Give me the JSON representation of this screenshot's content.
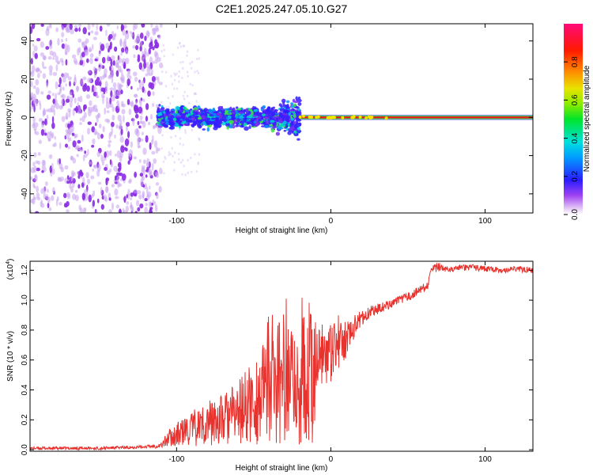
{
  "figure_title": "C2E1.2025.247.05.10.G27",
  "chart_data": [
    {
      "type": "heatmap",
      "title": "C2E1.2025.247.05.10.G27",
      "xlabel": "Height of straight line (km)",
      "ylabel": "Frequency (Hz)",
      "xlim": [
        -195,
        131
      ],
      "ylim": [
        -50,
        49
      ],
      "x_ticks": [
        -100,
        0,
        100
      ],
      "y_ticks": [
        -40,
        -20,
        0,
        20,
        40
      ],
      "colorbar": {
        "label": "Normalized spectral amplitude",
        "range": [
          0,
          1
        ],
        "ticks": [
          0.0,
          0.2,
          0.4,
          0.6,
          0.8
        ]
      },
      "regions": [
        {
          "name": "noise",
          "x": [
            -195,
            -110
          ],
          "freq_spread": 50,
          "amplitude": 0.1
        },
        {
          "name": "multipath",
          "x": [
            -112,
            -20
          ],
          "freq_center": 0,
          "freq_spread": 7,
          "amplitude": 0.35
        },
        {
          "name": "carrier",
          "x": [
            -20,
            131
          ],
          "freq_center": 0,
          "freq_spread": 1,
          "amplitude": 0.98
        }
      ]
    },
    {
      "type": "line",
      "xlabel": "Height of straight line (km)",
      "ylabel": "SNR (10 * v/v)",
      "y_exponent_label": "(x10",
      "y_exponent_value": "4",
      "xlim": [
        -195,
        131
      ],
      "ylim": [
        -0.01,
        1.26
      ],
      "x_ticks": [
        -100,
        0,
        100
      ],
      "y_ticks": [
        0.0,
        0.2,
        0.4,
        0.6,
        0.8,
        1.0,
        1.2
      ],
      "y_tick_labels": [
        "0.0",
        "0.2",
        "0.4",
        "0.6",
        "0.8",
        "1.0",
        "1.2"
      ],
      "series": [
        {
          "name": "SNR",
          "color": "#e8322e",
          "x": [
            -195,
            -150,
            -120,
            -110,
            -105,
            -100,
            -90,
            -80,
            -70,
            -60,
            -50,
            -40,
            -35,
            -30,
            -25,
            -20,
            -17,
            -15,
            -12,
            -10,
            -8,
            -5,
            -2,
            0,
            3,
            5,
            8,
            10,
            12,
            15,
            18,
            20,
            25,
            30,
            35,
            40,
            45,
            50,
            55,
            60,
            63,
            65,
            70,
            80,
            90,
            100,
            110,
            120,
            131
          ],
          "values": [
            0.01,
            0.01,
            0.02,
            0.03,
            0.08,
            0.1,
            0.14,
            0.18,
            0.2,
            0.25,
            0.32,
            0.4,
            0.45,
            0.48,
            0.42,
            0.4,
            0.5,
            0.55,
            0.45,
            0.5,
            0.55,
            0.62,
            0.6,
            0.64,
            0.66,
            0.7,
            0.72,
            0.74,
            0.78,
            0.82,
            0.86,
            0.88,
            0.92,
            0.94,
            0.96,
            0.98,
            1.0,
            1.02,
            1.05,
            1.08,
            1.1,
            1.2,
            1.22,
            1.21,
            1.22,
            1.21,
            1.2,
            1.21,
            1.2
          ],
          "spread": [
            0.01,
            0.01,
            0.01,
            0.02,
            0.06,
            0.08,
            0.12,
            0.15,
            0.18,
            0.22,
            0.3,
            0.36,
            0.42,
            0.45,
            0.4,
            0.4,
            0.5,
            0.5,
            0.45,
            0.3,
            0.25,
            0.2,
            0.2,
            0.2,
            0.18,
            0.16,
            0.14,
            0.12,
            0.1,
            0.08,
            0.06,
            0.05,
            0.04,
            0.04,
            0.03,
            0.03,
            0.03,
            0.03,
            0.03,
            0.03,
            0.03,
            0.03,
            0.03,
            0.02,
            0.02,
            0.02,
            0.02,
            0.02,
            0.02
          ]
        }
      ]
    }
  ]
}
